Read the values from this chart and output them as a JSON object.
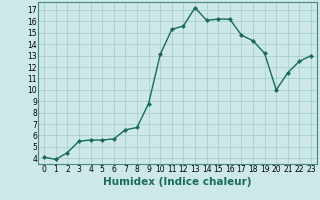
{
  "x": [
    0,
    1,
    2,
    3,
    4,
    5,
    6,
    7,
    8,
    9,
    10,
    11,
    12,
    13,
    14,
    15,
    16,
    17,
    18,
    19,
    20,
    21,
    22,
    23
  ],
  "y": [
    4.1,
    3.9,
    4.5,
    5.5,
    5.6,
    5.6,
    5.7,
    6.5,
    6.7,
    8.8,
    13.1,
    15.3,
    15.6,
    17.2,
    16.1,
    16.2,
    16.2,
    14.8,
    14.3,
    13.2,
    10.0,
    11.5,
    12.5,
    13.0
  ],
  "line_color": "#1a6b5a",
  "marker": "D",
  "marker_size": 2.0,
  "bg_color": "#cce8e8",
  "grid_color": "#aacece",
  "xlabel": "Humidex (Indice chaleur)",
  "xlim": [
    -0.5,
    23.5
  ],
  "ylim": [
    3.5,
    17.7
  ],
  "yticks": [
    4,
    5,
    6,
    7,
    8,
    9,
    10,
    11,
    12,
    13,
    14,
    15,
    16,
    17
  ],
  "xticks": [
    0,
    1,
    2,
    3,
    4,
    5,
    6,
    7,
    8,
    9,
    10,
    11,
    12,
    13,
    14,
    15,
    16,
    17,
    18,
    19,
    20,
    21,
    22,
    23
  ],
  "tick_label_fontsize": 5.5,
  "xlabel_fontsize": 7.5,
  "line_width": 1.0
}
